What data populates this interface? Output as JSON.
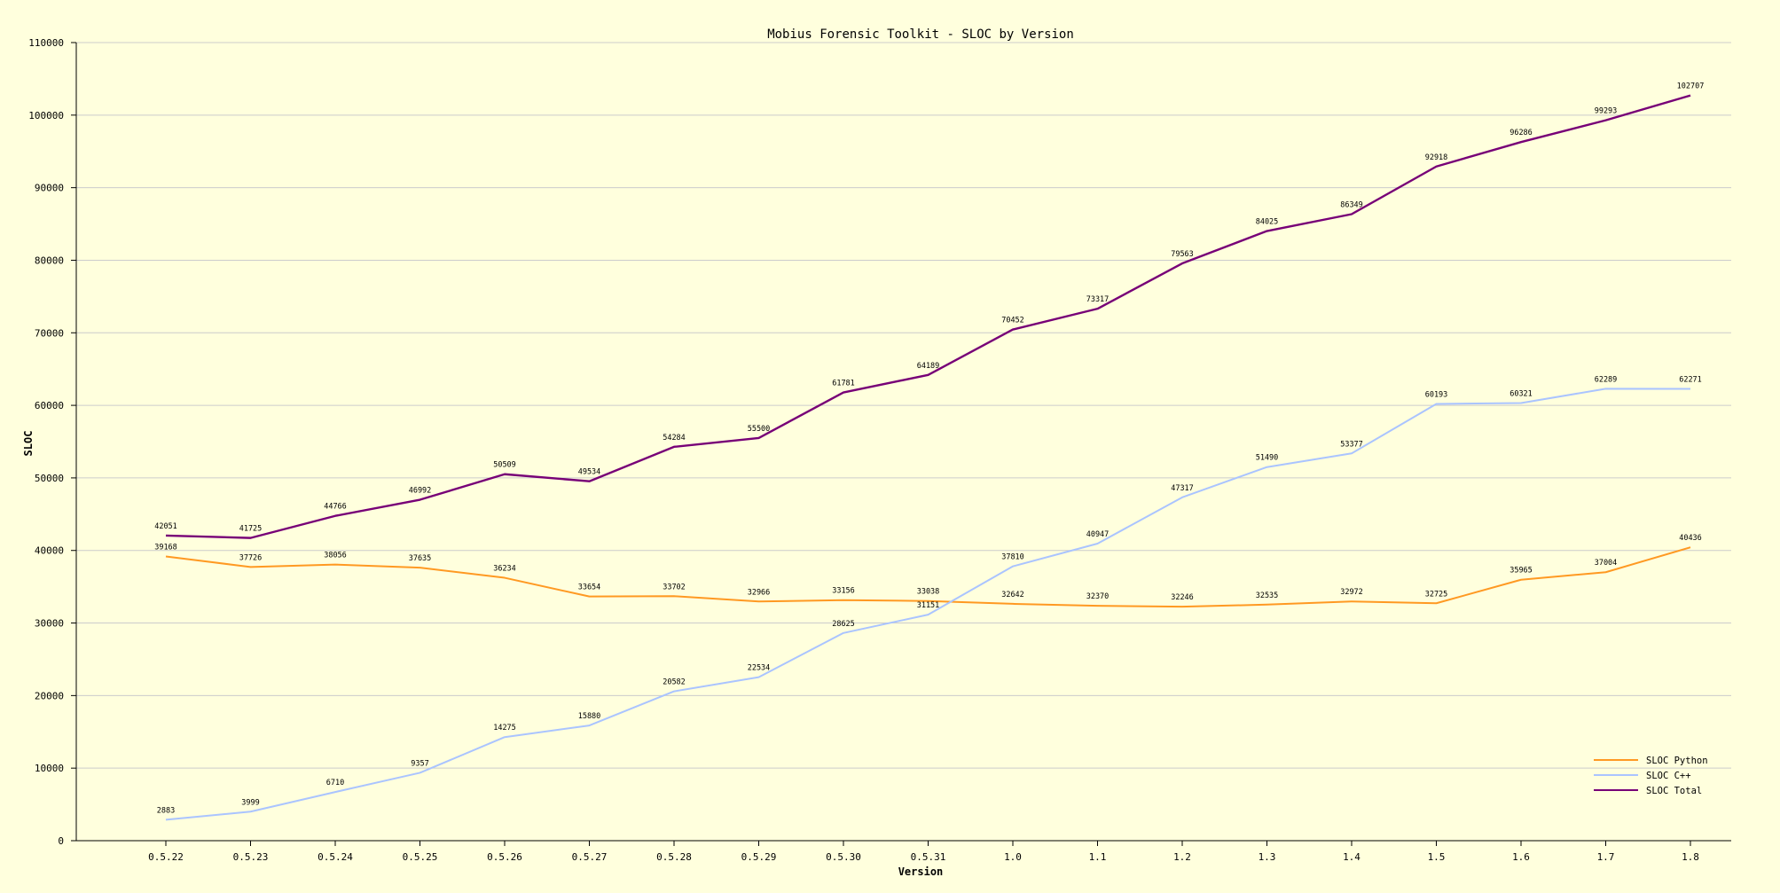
{
  "chart_data": {
    "type": "line",
    "title": "Mobius Forensic Toolkit - SLOC by Version",
    "xlabel": "Version",
    "ylabel": "SLOC",
    "ylim": [
      0,
      110000
    ],
    "y_ticks": [
      0,
      10000,
      20000,
      30000,
      40000,
      50000,
      60000,
      70000,
      80000,
      90000,
      100000,
      110000
    ],
    "grid": true,
    "legend_position": "bottom-right",
    "categories": [
      "0.5.22",
      "0.5.23",
      "0.5.24",
      "0.5.25",
      "0.5.26",
      "0.5.27",
      "0.5.28",
      "0.5.29",
      "0.5.30",
      "0.5.31",
      "1.0",
      "1.1",
      "1.2",
      "1.3",
      "1.4",
      "1.5",
      "1.6",
      "1.7",
      "1.8"
    ],
    "series": [
      {
        "name": "SLOC Python",
        "color": "#ff9922",
        "values": [
          39168,
          37726,
          38056,
          37635,
          36234,
          33654,
          33702,
          32966,
          33156,
          33038,
          32642,
          32370,
          32246,
          32535,
          32972,
          32725,
          35965,
          37004,
          40436
        ]
      },
      {
        "name": "SLOC C++",
        "color": "#aac4ff",
        "values": [
          2883,
          3999,
          6710,
          9357,
          14275,
          15880,
          20582,
          22534,
          28625,
          31151,
          37810,
          40947,
          47317,
          51490,
          53377,
          60193,
          60321,
          62289,
          62271
        ]
      },
      {
        "name": "SLOC Total",
        "color": "#770077",
        "values": [
          42051,
          41725,
          44766,
          46992,
          50509,
          49534,
          54284,
          55500,
          61781,
          64189,
          70452,
          73317,
          79563,
          84025,
          86349,
          92918,
          96286,
          99293,
          102707
        ]
      }
    ]
  }
}
